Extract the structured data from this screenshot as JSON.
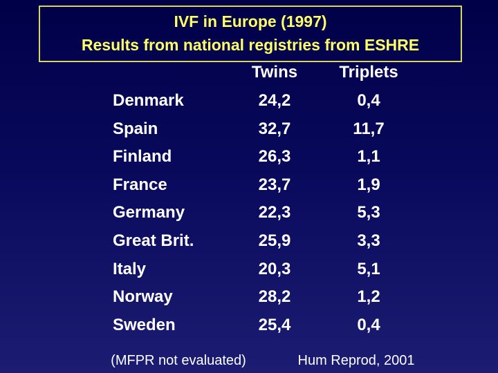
{
  "header": {
    "title_lines": [
      "IVF in Europe (1997)",
      "Results from national registries from ESHRE"
    ]
  },
  "table": {
    "columns": [
      "Twins",
      "Triplets"
    ],
    "rows": [
      [
        "Denmark",
        "24,2",
        "0,4"
      ],
      [
        "Spain",
        "32,7",
        "11,7"
      ],
      [
        "Finland",
        "26,3",
        "1,1"
      ],
      [
        "France",
        "23,7",
        "1,9"
      ],
      [
        "Germany",
        "22,3",
        "5,3"
      ],
      [
        "Great Brit.",
        "25,9",
        "3,3"
      ],
      [
        "Italy",
        "20,3",
        "5,1"
      ],
      [
        "Norway",
        "28,2",
        "1,2"
      ],
      [
        "Sweden",
        "25,4",
        "0,4"
      ]
    ]
  },
  "footer": {
    "note": "(MFPR not evaluated)",
    "source": "Hum Reprod, 2001"
  }
}
